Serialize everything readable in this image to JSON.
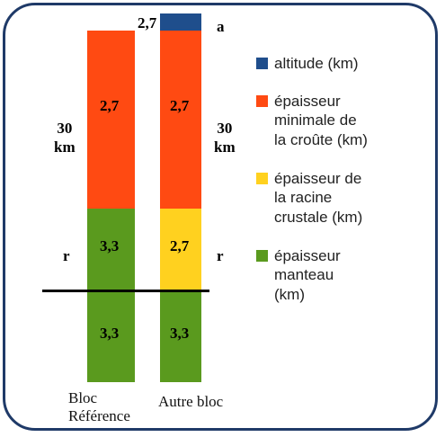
{
  "legend": [
    {
      "label_lines": [
        "altitude (km)"
      ],
      "color": "#1f4e8c"
    },
    {
      "label_lines": [
        "épaisseur",
        "minimale de",
        "la croûte (km)"
      ],
      "color": "#ff4a12"
    },
    {
      "label_lines": [
        "épaisseur de",
        "la racine",
        "crustale (km)"
      ],
      "color": "#ffd11f"
    },
    {
      "label_lines": [
        "épaisseur",
        "manteau",
        "(km)"
      ],
      "color": "#5a9a1e"
    }
  ],
  "column_left": {
    "caption_lines": [
      "Bloc",
      "Référence"
    ],
    "values": {
      "crust": "2,7",
      "mantle_upper": "3,3",
      "mantle_lower": "3,3"
    }
  },
  "column_right": {
    "caption": "Autre bloc",
    "values": {
      "altitude": "2,7",
      "crust": "2,7",
      "root": "2,7",
      "mantle_lower": "3,3"
    }
  },
  "labels": {
    "thickness_left_lines": [
      "30",
      "km"
    ],
    "thickness_right_lines": [
      "30",
      "km"
    ],
    "r_left": "r",
    "r_right": "r",
    "a": "a"
  }
}
